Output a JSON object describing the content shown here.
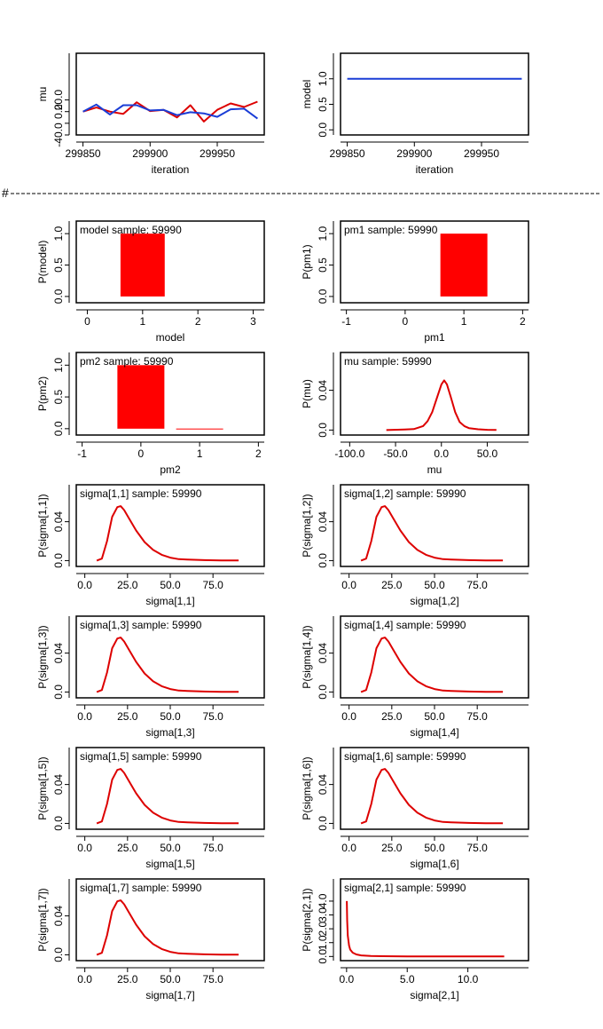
{
  "separator": {
    "hash": "#"
  },
  "chart_data": [
    {
      "type": "line",
      "xlabel": "iteration",
      "ylabel": "mu",
      "xlim": [
        299845,
        299985
      ],
      "ylim": [
        -40,
        100
      ],
      "xticks": [
        299850,
        299900,
        299950
      ],
      "xtick_labels": [
        "299850",
        "299900",
        "299950"
      ],
      "yticks": [
        -40,
        -20,
        0,
        20
      ],
      "ytick_labels": [
        "-40.0",
        "",
        "0.0",
        "20.0"
      ],
      "series": [
        {
          "color": "#dd0000",
          "x": [
            299850,
            299860,
            299870,
            299880,
            299890,
            299900,
            299910,
            299920,
            299930,
            299940,
            299950,
            299960,
            299970,
            299980
          ],
          "y": [
            0,
            7,
            0,
            -4,
            16,
            1,
            3,
            -10,
            11,
            -17,
            3,
            14,
            8,
            17
          ]
        },
        {
          "color": "#1a3dd6",
          "x": [
            299850,
            299860,
            299870,
            299880,
            299890,
            299900,
            299910,
            299920,
            299930,
            299940,
            299950,
            299960,
            299970,
            299980
          ],
          "y": [
            0,
            12,
            -5,
            11,
            11,
            2,
            3,
            -6,
            -1,
            -3,
            -9,
            4,
            5,
            -12
          ]
        }
      ]
    },
    {
      "type": "line",
      "xlabel": "iteration",
      "ylabel": "model",
      "xlim": [
        299845,
        299985
      ],
      "ylim": [
        -0.1,
        1.5
      ],
      "xticks": [
        299850,
        299900,
        299950
      ],
      "xtick_labels": [
        "299850",
        "299900",
        "299950"
      ],
      "yticks": [
        0,
        0.5,
        1.0
      ],
      "ytick_labels": [
        "0.0",
        "0.5",
        "1.0"
      ],
      "series": [
        {
          "color": "#1a3dd6",
          "x": [
            299850,
            299980
          ],
          "y": [
            1,
            1
          ]
        }
      ]
    },
    {
      "type": "bar",
      "title": "model sample: 59990",
      "xlabel": "model",
      "ylabel": "P(model)",
      "xlim": [
        -0.2,
        3.2
      ],
      "ylim": [
        -0.1,
        1.2
      ],
      "xticks": [
        0,
        1,
        2,
        3
      ],
      "xtick_labels": [
        "0",
        "1",
        "2",
        "3"
      ],
      "yticks": [
        0,
        0.5,
        1.0
      ],
      "ytick_labels": [
        "0.0",
        "0.5",
        "1.0"
      ],
      "bars": [
        {
          "x0": 0.6,
          "x1": 1.4,
          "value": 1.0
        }
      ]
    },
    {
      "type": "bar",
      "title": "pm1 sample: 59990",
      "xlabel": "pm1",
      "ylabel": "P(pm1)",
      "xlim": [
        -1.1,
        2.1
      ],
      "ylim": [
        -0.1,
        1.2
      ],
      "xticks": [
        -1,
        0,
        1,
        2
      ],
      "xtick_labels": [
        "-1",
        "0",
        "1",
        "2"
      ],
      "yticks": [
        0,
        0.5,
        1.0
      ],
      "ytick_labels": [
        "0.0",
        "0.5",
        "1.0"
      ],
      "bars": [
        {
          "x0": 0.6,
          "x1": 1.4,
          "value": 1.0
        }
      ]
    },
    {
      "type": "bar",
      "title": "pm2 sample: 59990",
      "xlabel": "pm2",
      "ylabel": "P(pm2)",
      "xlim": [
        -1.1,
        2.1
      ],
      "ylim": [
        -0.1,
        1.2
      ],
      "xticks": [
        -1,
        0,
        1,
        2
      ],
      "xtick_labels": [
        "-1",
        "0",
        "1",
        "2"
      ],
      "yticks": [
        0,
        0.5,
        1.0
      ],
      "ytick_labels": [
        "0.0",
        "0.5",
        "1.0"
      ],
      "bars": [
        {
          "x0": -0.4,
          "x1": 0.4,
          "value": 1.0
        },
        {
          "x0": 0.6,
          "x1": 1.4,
          "value": 0.002
        }
      ]
    },
    {
      "type": "line",
      "title": "mu sample: 59990",
      "xlabel": "mu",
      "ylabel": "P(mu)",
      "xlim": [
        -110,
        95
      ],
      "ylim": [
        -0.005,
        0.078
      ],
      "xticks": [
        -100,
        -50,
        0,
        50
      ],
      "xtick_labels": [
        "-100.0",
        "-50.0",
        "0.0",
        "50.0"
      ],
      "yticks": [
        0,
        0.04
      ],
      "ytick_labels": [
        "0.0",
        "0.04"
      ],
      "series": [
        {
          "color": "#dd0000",
          "x": [
            -60,
            -40,
            -30,
            -20,
            -15,
            -10,
            -5,
            0,
            3,
            6,
            10,
            15,
            20,
            25,
            30,
            40,
            50,
            60
          ],
          "y": [
            0,
            0.0005,
            0.001,
            0.004,
            0.009,
            0.018,
            0.032,
            0.046,
            0.05,
            0.046,
            0.034,
            0.018,
            0.008,
            0.004,
            0.002,
            0.0008,
            0.0003,
            0.0001
          ]
        }
      ]
    },
    {
      "type": "line",
      "title": "sigma[1,1] sample: 59990",
      "xlabel": "sigma[1,1]",
      "ylabel": "P(sigma[1,1])",
      "xlim": [
        -5,
        105
      ],
      "ylim": [
        -0.006,
        0.078
      ],
      "xticks": [
        0,
        25,
        50,
        75
      ],
      "xtick_labels": [
        "0.0",
        "25.0",
        "50.0",
        "75.0"
      ],
      "yticks": [
        0,
        0.04
      ],
      "ytick_labels": [
        "0.0",
        "0.04"
      ],
      "series": [
        {
          "color": "#dd0000",
          "x": [
            7,
            10,
            13,
            16,
            19,
            21,
            23,
            26,
            30,
            35,
            40,
            45,
            50,
            55,
            60,
            70,
            80,
            90
          ],
          "y": [
            0,
            0.002,
            0.02,
            0.045,
            0.055,
            0.056,
            0.052,
            0.043,
            0.031,
            0.019,
            0.011,
            0.006,
            0.003,
            0.0015,
            0.001,
            0.0005,
            0.0002,
            0.0001
          ]
        }
      ]
    },
    {
      "type": "line",
      "title": "sigma[1,2] sample: 59990",
      "xlabel": "sigma[1,2]",
      "ylabel": "P(sigma[1,2])",
      "xlim": [
        -5,
        105
      ],
      "ylim": [
        -0.006,
        0.078
      ],
      "xticks": [
        0,
        25,
        50,
        75
      ],
      "xtick_labels": [
        "0.0",
        "25.0",
        "50.0",
        "75.0"
      ],
      "yticks": [
        0,
        0.04
      ],
      "ytick_labels": [
        "0.0",
        "0.04"
      ],
      "series": [
        {
          "color": "#dd0000",
          "x": [
            7,
            10,
            13,
            16,
            19,
            21,
            23,
            26,
            30,
            35,
            40,
            45,
            50,
            55,
            60,
            70,
            80,
            90
          ],
          "y": [
            0,
            0.002,
            0.02,
            0.045,
            0.055,
            0.056,
            0.052,
            0.043,
            0.031,
            0.019,
            0.011,
            0.006,
            0.003,
            0.0015,
            0.001,
            0.0005,
            0.0002,
            0.0001
          ]
        }
      ]
    },
    {
      "type": "line",
      "title": "sigma[1,3] sample: 59990",
      "xlabel": "sigma[1,3]",
      "ylabel": "P(sigma[1,3])",
      "xlim": [
        -5,
        105
      ],
      "ylim": [
        -0.006,
        0.078
      ],
      "xticks": [
        0,
        25,
        50,
        75
      ],
      "xtick_labels": [
        "0.0",
        "25.0",
        "50.0",
        "75.0"
      ],
      "yticks": [
        0,
        0.04
      ],
      "ytick_labels": [
        "0.0",
        "0.04"
      ],
      "series": [
        {
          "color": "#dd0000",
          "x": [
            7,
            10,
            13,
            16,
            19,
            21,
            23,
            26,
            30,
            35,
            40,
            45,
            50,
            55,
            60,
            70,
            80,
            90
          ],
          "y": [
            0,
            0.002,
            0.02,
            0.045,
            0.055,
            0.056,
            0.052,
            0.043,
            0.031,
            0.019,
            0.011,
            0.006,
            0.003,
            0.0015,
            0.001,
            0.0005,
            0.0002,
            0.0001
          ]
        }
      ]
    },
    {
      "type": "line",
      "title": "sigma[1,4] sample: 59990",
      "xlabel": "sigma[1,4]",
      "ylabel": "P(sigma[1,4])",
      "xlim": [
        -5,
        105
      ],
      "ylim": [
        -0.006,
        0.078
      ],
      "xticks": [
        0,
        25,
        50,
        75
      ],
      "xtick_labels": [
        "0.0",
        "25.0",
        "50.0",
        "75.0"
      ],
      "yticks": [
        0,
        0.04
      ],
      "ytick_labels": [
        "0.0",
        "0.04"
      ],
      "series": [
        {
          "color": "#dd0000",
          "x": [
            7,
            10,
            13,
            16,
            19,
            21,
            23,
            26,
            30,
            35,
            40,
            45,
            50,
            55,
            60,
            70,
            80,
            90
          ],
          "y": [
            0,
            0.002,
            0.02,
            0.045,
            0.055,
            0.056,
            0.052,
            0.043,
            0.031,
            0.019,
            0.011,
            0.006,
            0.003,
            0.0015,
            0.001,
            0.0005,
            0.0002,
            0.0001
          ]
        }
      ]
    },
    {
      "type": "line",
      "title": "sigma[1,5] sample: 59990",
      "xlabel": "sigma[1,5]",
      "ylabel": "P(sigma[1,5])",
      "xlim": [
        -5,
        105
      ],
      "ylim": [
        -0.006,
        0.078
      ],
      "xticks": [
        0,
        25,
        50,
        75
      ],
      "xtick_labels": [
        "0.0",
        "25.0",
        "50.0",
        "75.0"
      ],
      "yticks": [
        0,
        0.04
      ],
      "ytick_labels": [
        "0.0",
        "0.04"
      ],
      "series": [
        {
          "color": "#dd0000",
          "x": [
            7,
            10,
            13,
            16,
            19,
            21,
            23,
            26,
            30,
            35,
            40,
            45,
            50,
            55,
            60,
            70,
            80,
            90
          ],
          "y": [
            0,
            0.002,
            0.02,
            0.045,
            0.055,
            0.056,
            0.052,
            0.043,
            0.031,
            0.019,
            0.011,
            0.006,
            0.003,
            0.0015,
            0.001,
            0.0005,
            0.0002,
            0.0001
          ]
        }
      ]
    },
    {
      "type": "line",
      "title": "sigma[1,6] sample: 59990",
      "xlabel": "sigma[1,6]",
      "ylabel": "P(sigma[1,6])",
      "xlim": [
        -5,
        105
      ],
      "ylim": [
        -0.006,
        0.078
      ],
      "xticks": [
        0,
        25,
        50,
        75
      ],
      "xtick_labels": [
        "0.0",
        "25.0",
        "50.0",
        "75.0"
      ],
      "yticks": [
        0,
        0.04
      ],
      "ytick_labels": [
        "0.0",
        "0.04"
      ],
      "series": [
        {
          "color": "#dd0000",
          "x": [
            7,
            10,
            13,
            16,
            19,
            21,
            23,
            26,
            30,
            35,
            40,
            45,
            50,
            55,
            60,
            70,
            80,
            90
          ],
          "y": [
            0,
            0.002,
            0.02,
            0.045,
            0.055,
            0.056,
            0.052,
            0.043,
            0.031,
            0.019,
            0.011,
            0.006,
            0.003,
            0.0015,
            0.001,
            0.0005,
            0.0002,
            0.0001
          ]
        }
      ]
    },
    {
      "type": "line",
      "title": "sigma[1,7] sample: 59990",
      "xlabel": "sigma[1,7]",
      "ylabel": "P(sigma[1,7])",
      "xlim": [
        -5,
        105
      ],
      "ylim": [
        -0.006,
        0.078
      ],
      "xticks": [
        0,
        25,
        50,
        75
      ],
      "xtick_labels": [
        "0.0",
        "25.0",
        "50.0",
        "75.0"
      ],
      "yticks": [
        0,
        0.04
      ],
      "ytick_labels": [
        "0.0",
        "0.04"
      ],
      "series": [
        {
          "color": "#dd0000",
          "x": [
            7,
            10,
            13,
            16,
            19,
            21,
            23,
            26,
            30,
            35,
            40,
            45,
            50,
            55,
            60,
            70,
            80,
            90
          ],
          "y": [
            0,
            0.002,
            0.02,
            0.045,
            0.055,
            0.056,
            0.052,
            0.043,
            0.031,
            0.019,
            0.011,
            0.006,
            0.003,
            0.0015,
            0.001,
            0.0005,
            0.0002,
            0.0001
          ]
        }
      ]
    },
    {
      "type": "line",
      "title": "sigma[2,1] sample: 59990",
      "xlabel": "sigma[2,1]",
      "ylabel": "P(sigma[2,1])",
      "xlim": [
        -0.5,
        15
      ],
      "ylim": [
        -0.3,
        5.6
      ],
      "xticks": [
        0,
        5,
        10
      ],
      "xtick_labels": [
        "0.0",
        "5.0",
        "10.0"
      ],
      "yticks": [
        0,
        1,
        2,
        3,
        4
      ],
      "ytick_labels": [
        "0.0",
        "1.0",
        "2.0",
        "3.0",
        "4.0"
      ],
      "series": [
        {
          "color": "#dd0000",
          "x": [
            0.02,
            0.05,
            0.1,
            0.2,
            0.3,
            0.5,
            0.8,
            1.2,
            2,
            3,
            5,
            8,
            13
          ],
          "y": [
            4.0,
            2.6,
            1.5,
            0.8,
            0.5,
            0.28,
            0.15,
            0.08,
            0.04,
            0.02,
            0.01,
            0.005,
            0.002
          ]
        }
      ]
    }
  ]
}
